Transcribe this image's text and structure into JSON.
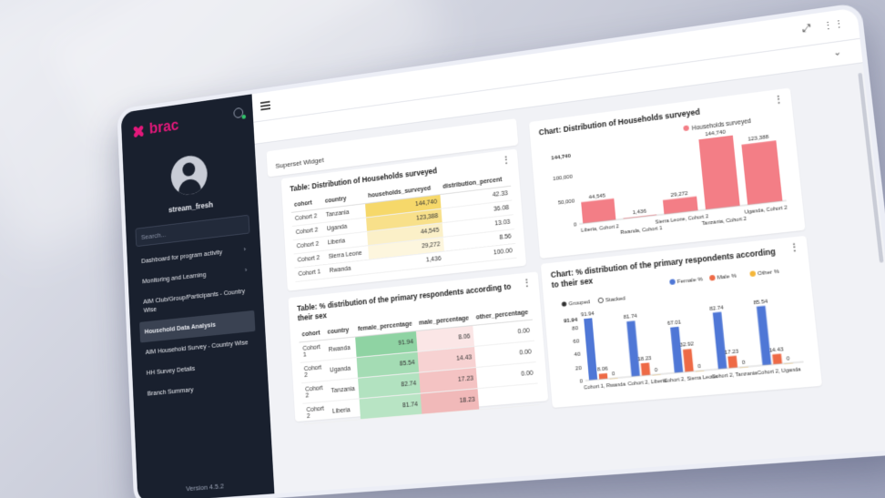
{
  "app": {
    "logo": "brac",
    "username": "stream_fresh",
    "search_placeholder": "Search...",
    "version": "Version 4.5.2"
  },
  "sidebar": {
    "items": [
      {
        "label": "Dashboard for program activity",
        "chevron": "›"
      },
      {
        "label": "Monitoring and Learning",
        "chevron": "›"
      },
      {
        "label": "AIM Club/Group/Participants - Country Wise"
      },
      {
        "label": "Household Data Analysis",
        "active": true
      },
      {
        "label": "AIM Household Survey - Country Wise"
      },
      {
        "label": "HH Survey Details"
      },
      {
        "label": "Branch Summary"
      }
    ]
  },
  "topbar": {
    "expand_icon": "expand-icon",
    "apps_icon": "apps-grid-icon",
    "chevron": "⌄"
  },
  "widget": {
    "title": "Superset Widget",
    "kebab": "⋮"
  },
  "table1": {
    "title": "Table: Distribution of Households surveyed",
    "headers": [
      "cohort",
      "country",
      "households_surveyed",
      "distribution_percent"
    ],
    "rows": [
      [
        "Cohort 2",
        "Tanzania",
        "144,740",
        "42.33"
      ],
      [
        "Cohort 2",
        "Uganda",
        "123,388",
        "36.08"
      ],
      [
        "Cohort 2",
        "Liberia",
        "44,545",
        "13.03"
      ],
      [
        "Cohort 2",
        "Sierra Leone",
        "29,272",
        "8.56"
      ],
      [
        "Cohort 1",
        "Rwanda",
        "1,436",
        "100.00"
      ]
    ],
    "heat": [
      "#f6d86a",
      "#f8e08a",
      "#fbf0c8",
      "#fdf6de",
      "#ffffff"
    ]
  },
  "table2": {
    "title": "Table: % distribution of the primary respondents according to their sex",
    "headers": [
      "cohort",
      "country",
      "female_percentage",
      "male_percentage",
      "other_percentage"
    ],
    "rows": [
      [
        "Cohort 1",
        "Rwanda",
        "91.94",
        "8.06",
        "0.00"
      ],
      [
        "Cohort 2",
        "Uganda",
        "85.54",
        "14.43",
        "0.00"
      ],
      [
        "Cohort 2",
        "Tanzania",
        "82.74",
        "17.23",
        "0.00"
      ],
      [
        "Cohort 2",
        "Liberia",
        "81.74",
        "18.23",
        ""
      ]
    ],
    "female_heat": [
      "#8fd3a3",
      "#a4dcb4",
      "#b2e2c0",
      "#b8e4c4"
    ],
    "male_heat": [
      "#fbe6e6",
      "#f7d2d2",
      "#f4c3c3",
      "#f1b9b9"
    ]
  },
  "chart1": {
    "title": "Chart: Distribution of Households surveyed",
    "legend": "Households surveyed",
    "y_ticks": [
      "144,740",
      "100,000",
      "50,000",
      "0"
    ],
    "bar_color": "#f37e86",
    "chart_data": {
      "type": "bar",
      "categories": [
        "Liberia, Cohort 2",
        "Rwanda, Cohort 1",
        "Sierra Leone, Cohort 2",
        "Tanzania, Cohort 2",
        "Uganda, Cohort 2"
      ],
      "values": [
        44545,
        1436,
        29272,
        144740,
        123388
      ],
      "labels": [
        "44,545",
        "1,436",
        "29,272",
        "144,740",
        "123,388"
      ],
      "ylim": [
        0,
        144740
      ]
    }
  },
  "chart2": {
    "title": "Chart: % distribution of the primary respondents according to their sex",
    "legend": [
      "Female %",
      "Male %",
      "Other %"
    ],
    "colors": [
      "#4f77d6",
      "#ee6a46",
      "#f4b63a"
    ],
    "mode_options": [
      "Grouped",
      "Stacked"
    ],
    "y_ticks": [
      "91.94",
      "80",
      "60",
      "40",
      "20",
      "0"
    ],
    "chart_data": {
      "type": "bar",
      "categories": [
        "Cohort 1, Rwanda",
        "Cohort 2, Liberia",
        "Cohort 2, Sierra Leone",
        "Cohort 2, Tanzania",
        "Cohort 2, Uganda"
      ],
      "series": [
        {
          "name": "Female %",
          "values": [
            91.94,
            81.74,
            67.01,
            82.74,
            85.54
          ]
        },
        {
          "name": "Male %",
          "values": [
            8.06,
            18.23,
            32.92,
            17.23,
            14.43
          ]
        },
        {
          "name": "Other %",
          "values": [
            0,
            0,
            0,
            0,
            0
          ]
        }
      ],
      "ylim": [
        0,
        91.94
      ]
    }
  }
}
